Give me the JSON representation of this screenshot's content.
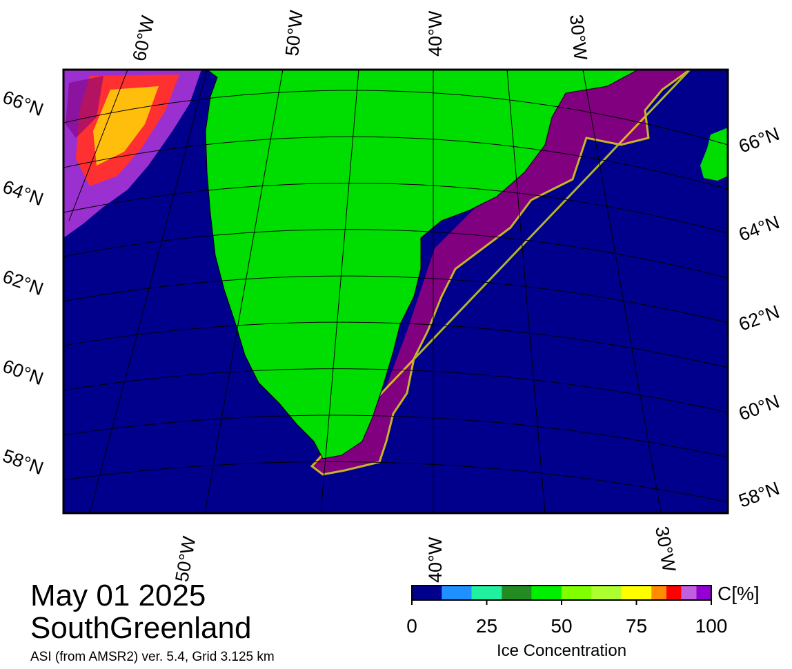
{
  "graticule_labels": {
    "top": [
      "60°W",
      "50°W",
      "40°W",
      "30°W"
    ],
    "left": [
      "66°N",
      "64°N",
      "62°N",
      "60°N",
      "58°N"
    ],
    "right": [
      "66°N",
      "64°N",
      "62°N",
      "60°N",
      "58°N"
    ],
    "bottom": [
      "50°W",
      "40°W",
      "30°W"
    ]
  },
  "date": "May 01 2025",
  "region": "SouthGreenland",
  "product": "ASI (from AMSR2) ver. 5.4,  Grid 3.125 km",
  "colorbar": {
    "unit": "C[%]",
    "label": "Ice Concentration",
    "lim": [
      0,
      100
    ],
    "ticks": [
      0,
      25,
      50,
      75,
      100
    ],
    "bounds": [
      0,
      10,
      20,
      30,
      40,
      50,
      60,
      70,
      80,
      85,
      90,
      95,
      100
    ],
    "colors": [
      "#00008c",
      "#1e90ff",
      "#20f0a0",
      "#228b22",
      "#00ee00",
      "#7fff00",
      "#adff2f",
      "#ffff00",
      "#ff8c00",
      "#ff0000",
      "#c060e0",
      "#9400d3"
    ]
  }
}
